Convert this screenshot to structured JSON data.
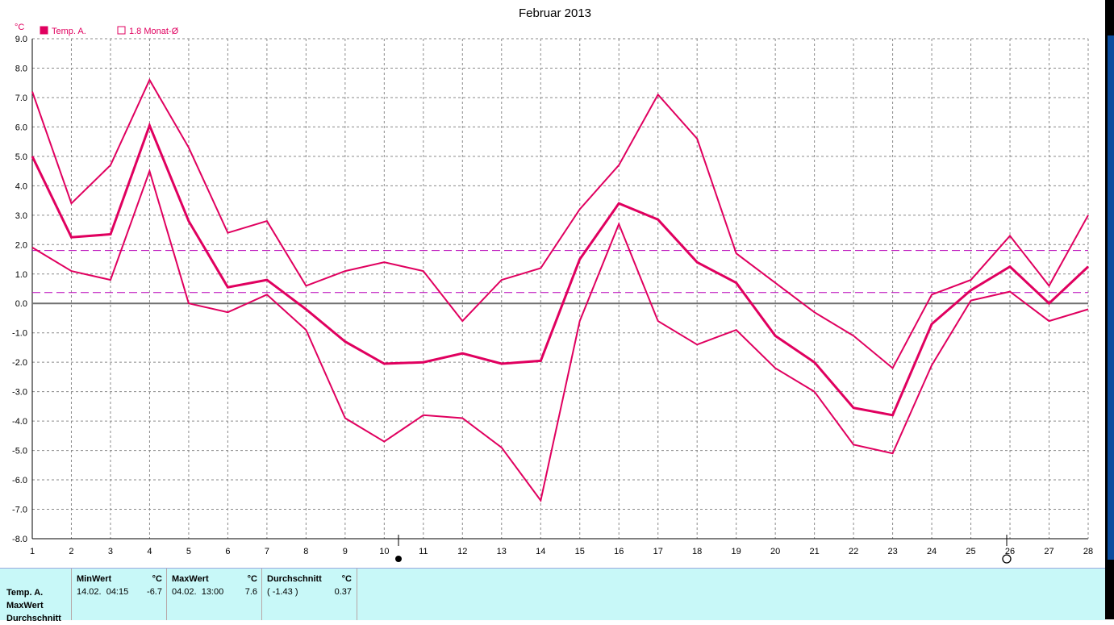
{
  "chart_data": {
    "type": "line",
    "title": "Februar 2013",
    "ylabel": "°C",
    "xlabel": "",
    "ylim": [
      -8,
      9
    ],
    "yticks": [
      "9.0",
      "8.0",
      "7.0",
      "6.0",
      "5.0",
      "4.0",
      "3.0",
      "2.0",
      "1.0",
      "0.0",
      "-1.0",
      "-2.0",
      "-3.0",
      "-4.0",
      "-5.0",
      "-6.0",
      "-7.0",
      "-8.0"
    ],
    "x": [
      1,
      2,
      3,
      4,
      5,
      6,
      7,
      8,
      9,
      10,
      11,
      12,
      13,
      14,
      15,
      16,
      17,
      18,
      19,
      20,
      21,
      22,
      23,
      24,
      25,
      26,
      27,
      28
    ],
    "legend": [
      "Temp. A.",
      "1.8 Monat-Ø"
    ],
    "series": [
      {
        "name": "Temp. A.",
        "values": [
          5.0,
          2.25,
          2.35,
          6.05,
          2.8,
          0.55,
          0.8,
          -0.2,
          -1.3,
          -2.05,
          -2.0,
          -1.7,
          -2.05,
          -1.95,
          1.5,
          3.4,
          2.85,
          1.4,
          0.7,
          -1.1,
          -2.0,
          -3.55,
          -3.8,
          -0.7,
          0.45,
          1.25,
          0.0,
          1.25
        ]
      },
      {
        "values": [
          7.2,
          3.4,
          4.7,
          7.6,
          5.3,
          2.4,
          2.8,
          0.6,
          1.1,
          1.4,
          1.1,
          -0.6,
          0.8,
          1.2,
          3.2,
          4.7,
          7.1,
          5.6,
          1.7,
          0.7,
          -0.3,
          -1.1,
          -2.2,
          0.3,
          0.8,
          2.3,
          0.6,
          3.0
        ]
      },
      {
        "values": [
          1.9,
          1.1,
          0.8,
          4.5,
          0.0,
          -0.3,
          0.3,
          -0.9,
          -3.9,
          -4.7,
          -3.8,
          -3.9,
          -4.9,
          -6.7,
          -0.6,
          2.7,
          -0.6,
          -1.4,
          -0.9,
          -2.2,
          -3.0,
          -4.8,
          -5.1,
          -2.1,
          0.1,
          0.4,
          -0.6,
          -0.2
        ]
      }
    ],
    "reference_lines": [
      1.8,
      0.37
    ],
    "grid": true,
    "colors": {
      "series": "#e0005f",
      "reference": "#b800b8",
      "zero": "#707070"
    }
  },
  "stats": {
    "row_labels": [
      "Temp. A.",
      "MaxWert",
      "Durchschnitt"
    ],
    "min": {
      "header": "MinWert",
      "unit": "°C",
      "date": "14.02.  04:15",
      "value": "-6.7"
    },
    "max": {
      "header": "MaxWert",
      "unit": "°C",
      "date": "04.02.  13:00",
      "value": "7.6"
    },
    "avg": {
      "header": "Durchschnitt",
      "unit": "°C",
      "note": "( -1.43 )",
      "value": "0.37"
    }
  }
}
